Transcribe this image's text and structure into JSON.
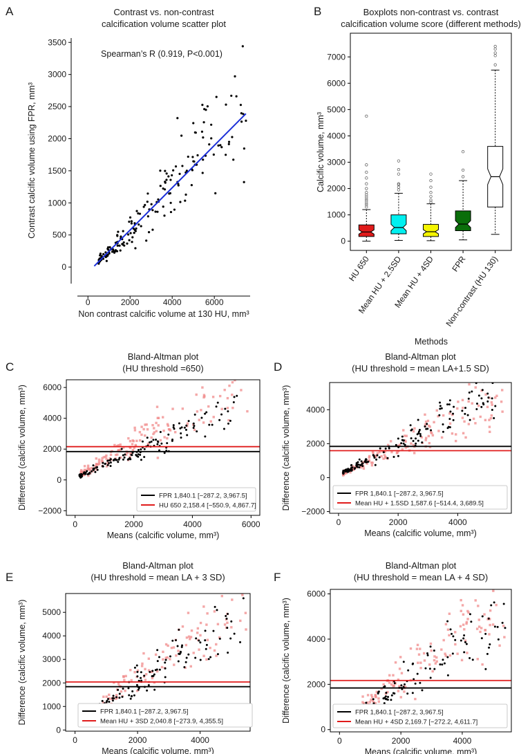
{
  "figure": {
    "width": 767,
    "height": 1090
  },
  "colors": {
    "black": "#000000",
    "red": "#e01b1b",
    "pink": "#f08a8a",
    "blue": "#1b2fd8"
  },
  "chart_data": [
    {
      "id": "A",
      "type": "scatter",
      "panel_label": "A",
      "title": [
        "Contrast vs. non-contrast",
        "calcification volume scatter plot"
      ],
      "xlabel": "Non contrast calcific volume at 130 HU, mm³",
      "ylabel": "Contrast calcific volume using FPR, mm³",
      "xlim": [
        -500,
        7700
      ],
      "ylim": [
        -150,
        3600
      ],
      "xticks": [
        0,
        2000,
        4000,
        6000
      ],
      "yticks": [
        0,
        500,
        1000,
        1500,
        2000,
        2500,
        3000,
        3500
      ],
      "annotation": "Spearman’s R (0.919, P<0.001)",
      "fit_line": {
        "x": [
          300,
          7500
        ],
        "y": [
          15,
          2390
        ],
        "color": "#1b2fd8"
      },
      "points": {
        "n": 190,
        "seed": 11,
        "x_range": [
          500,
          7500
        ],
        "slope": 0.33,
        "intercept": -80,
        "noise": 0.22,
        "outliers": [
          [
            7350,
            3440
          ],
          [
            6100,
            2650
          ],
          [
            4250,
            2320
          ],
          [
            5600,
            2450
          ],
          [
            7500,
            2280
          ],
          [
            6050,
            1150
          ],
          [
            6700,
            1950
          ]
        ]
      }
    },
    {
      "id": "B",
      "type": "box",
      "panel_label": "B",
      "title": [
        "Boxplots non-contrast vs. contrast",
        "calcification volume score (different methods)"
      ],
      "xlabel": "Methods",
      "ylabel": "Calcific volume, mm³",
      "ylim": [
        -350,
        7900
      ],
      "yticks": [
        0,
        1000,
        2000,
        3000,
        4000,
        5000,
        6000,
        7000
      ],
      "categories": [
        "HU 650",
        "Mean HU + 2.5SD",
        "Mean HU + 4SD",
        "FPR",
        "Non-contrast (HU 130)"
      ],
      "boxes": [
        {
          "color": "#e01b1b",
          "whislo": 0,
          "q1": 180,
          "med": 350,
          "q3": 620,
          "whishi": 1200,
          "notch": [
            270,
            430
          ],
          "fliers": [
            1300,
            1380,
            1450,
            1530,
            1600,
            1680,
            1760,
            1850,
            2000,
            2180,
            2400,
            2620,
            2900,
            4750
          ]
        },
        {
          "color": "#00f0f0",
          "whislo": 30,
          "q1": 280,
          "med": 520,
          "q3": 1000,
          "whishi": 1820,
          "notch": [
            400,
            640
          ],
          "fliers": [
            1950,
            2050,
            2150,
            2180,
            2550,
            2720,
            3050
          ]
        },
        {
          "color": "#f5f500",
          "whislo": 20,
          "q1": 180,
          "med": 360,
          "q3": 640,
          "whishi": 1420,
          "notch": [
            280,
            440
          ],
          "fliers": [
            1480,
            1560,
            1700,
            1850,
            2050,
            2300,
            2550
          ]
        },
        {
          "color": "#0a6e0a",
          "whislo": 50,
          "q1": 400,
          "med": 650,
          "q3": 1150,
          "whishi": 2300,
          "notch": [
            520,
            780
          ],
          "fliers": [
            2450,
            2700,
            3400
          ]
        },
        {
          "color": "#ffffff",
          "whislo": 260,
          "q1": 1300,
          "med": 2450,
          "q3": 3600,
          "whishi": 6500,
          "notch": [
            2150,
            2750
          ],
          "fliers": [
            6700,
            7050,
            7150,
            7300,
            7400
          ]
        }
      ]
    },
    {
      "id": "C",
      "type": "bland-altman",
      "panel_label": "C",
      "title": [
        "Bland-Altman plot",
        "(HU threshold =650)"
      ],
      "xlabel": "Means (calcific volume, mm³)",
      "ylabel": "Difference (calcific volume, mm³)",
      "xlim": [
        -300,
        6300
      ],
      "ylim": [
        -2300,
        6500
      ],
      "xticks": [
        0,
        2000,
        4000,
        6000
      ],
      "yticks": [
        -2000,
        0,
        2000,
        4000,
        6000
      ],
      "legend_position": "lower-right",
      "legend": [
        {
          "label": "FPR 1,840.1 [−287.2, 3,967.5]",
          "color": "#000000"
        },
        {
          "label": "HU 650 2,158.4 [−550.9, 4,867.7]",
          "color": "#e01b1b"
        }
      ],
      "hlines": [
        {
          "y": 1840.1,
          "color": "#000000"
        },
        {
          "y": 2158.4,
          "color": "#e01b1b"
        }
      ],
      "black_points": {
        "n": 150,
        "seed": 21,
        "x_range": [
          150,
          5600
        ],
        "slope": 0.8,
        "intercept": 150,
        "noise": 0.16
      },
      "red_points": {
        "n": 170,
        "seed": 22,
        "x_range": [
          200,
          6100
        ],
        "slope": 1.05,
        "intercept": 200,
        "noise": 0.2
      }
    },
    {
      "id": "D",
      "type": "bland-altman",
      "panel_label": "D",
      "title": [
        "Bland-Altman plot",
        "(HU threshold = mean LA+1.5 SD)"
      ],
      "xlabel": "Means (calcific volume, mm³)",
      "ylabel": "Difference (calcific volume, mm³)",
      "xlim": [
        -300,
        5800
      ],
      "ylim": [
        -2100,
        5600
      ],
      "xticks": [
        0,
        2000,
        4000
      ],
      "yticks": [
        -2000,
        0,
        2000,
        4000
      ],
      "legend_position": "lower-right",
      "legend": [
        {
          "label": "FPR 1,840.1 [−287.2, 3,967.5]",
          "color": "#000000"
        },
        {
          "label": "Mean HU + 1.5SD 1,587.6 [−514.4, 3,689.5]",
          "color": "#e01b1b"
        }
      ],
      "hlines": [
        {
          "y": 1840.1,
          "color": "#000000"
        },
        {
          "y": 1587.6,
          "color": "#e01b1b"
        }
      ],
      "black_points": {
        "n": 150,
        "seed": 31,
        "x_range": [
          150,
          5300
        ],
        "slope": 0.92,
        "intercept": 150,
        "noise": 0.16
      },
      "red_points": {
        "n": 170,
        "seed": 32,
        "x_range": [
          150,
          5600
        ],
        "slope": 0.85,
        "intercept": 100,
        "noise": 0.22
      }
    },
    {
      "id": "E",
      "type": "bland-altman",
      "panel_label": "E",
      "title": [
        "Bland-Altman plot",
        "(HU threshold = mean LA + 3 SD)"
      ],
      "xlabel": "Means (calcific volume, mm³)",
      "ylabel": "Difference (calcific volume, mm³)",
      "xlim": [
        -300,
        5600
      ],
      "ylim": [
        -50,
        5800
      ],
      "xticks": [
        0,
        2000,
        4000
      ],
      "yticks": [
        0,
        1000,
        2000,
        3000,
        4000,
        5000
      ],
      "legend_position": "lower-left",
      "legend": [
        {
          "label": "FPR 1,840.1 [−287.2, 3,967.5]",
          "color": "#000000"
        },
        {
          "label": "Mean HU + 3SD 2,040.8 [−273.9, 4,355.5]",
          "color": "#e01b1b"
        }
      ],
      "hlines": [
        {
          "y": 1840.1,
          "color": "#000000"
        },
        {
          "y": 2040.8,
          "color": "#e01b1b"
        }
      ],
      "black_points": {
        "n": 150,
        "seed": 41,
        "x_range": [
          150,
          5400
        ],
        "slope": 0.9,
        "intercept": 150,
        "noise": 0.16
      },
      "red_points": {
        "n": 170,
        "seed": 42,
        "x_range": [
          150,
          5500
        ],
        "slope": 1.0,
        "intercept": 150,
        "noise": 0.2
      }
    },
    {
      "id": "F",
      "type": "bland-altman",
      "panel_label": "F",
      "title": [
        "Bland-Altman plot",
        "(HU threshold = mean LA + 4 SD)"
      ],
      "xlabel": "Means (calcific volume, mm³)",
      "ylabel": "Difference (calcific volume, mm³)",
      "xlim": [
        -300,
        5600
      ],
      "ylim": [
        -100,
        6200
      ],
      "xticks": [
        0,
        2000,
        4000
      ],
      "yticks": [
        0,
        2000,
        4000,
        6000
      ],
      "legend_position": "lower-right",
      "legend": [
        {
          "label": "FPR 1,840.1 [−287.2, 3,967.5]",
          "color": "#000000"
        },
        {
          "label": "Mean HU + 4SD 2,169.7 [−272.2, 4,611.7]",
          "color": "#e01b1b"
        }
      ],
      "hlines": [
        {
          "y": 1840.1,
          "color": "#000000"
        },
        {
          "y": 2169.7,
          "color": "#e01b1b"
        }
      ],
      "black_points": {
        "n": 150,
        "seed": 51,
        "x_range": [
          150,
          5400
        ],
        "slope": 0.9,
        "intercept": 150,
        "noise": 0.16
      },
      "red_points": {
        "n": 170,
        "seed": 52,
        "x_range": [
          150,
          5500
        ],
        "slope": 1.05,
        "intercept": 150,
        "noise": 0.2
      }
    }
  ]
}
